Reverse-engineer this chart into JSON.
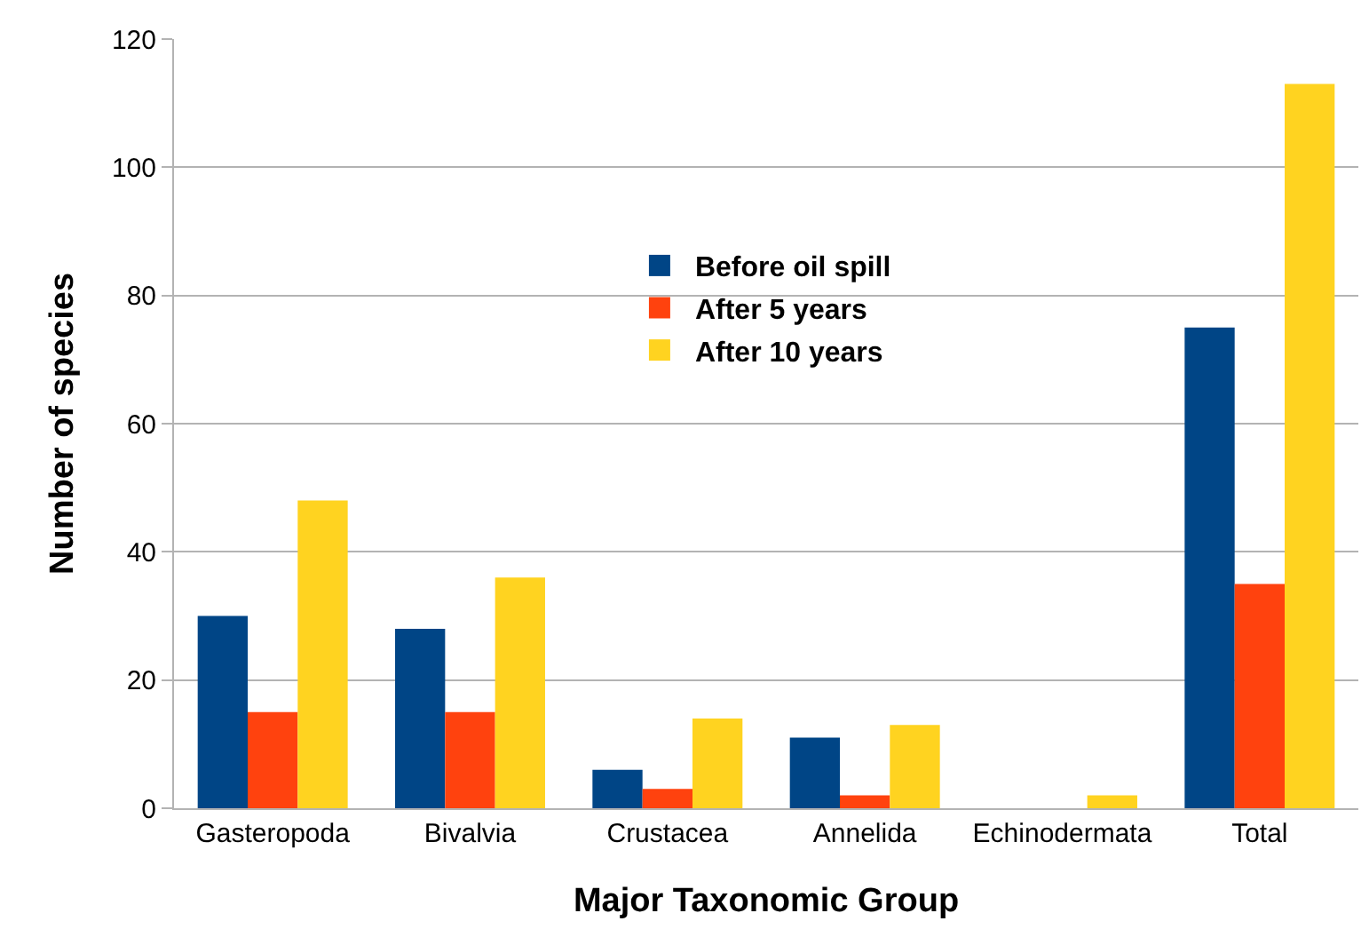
{
  "chart_data": {
    "type": "bar",
    "xlabel": "Major Taxonomic Group",
    "ylabel": "Number of species",
    "categories": [
      "Gasteropoda",
      "Bivalvia",
      "Crustacea",
      "Annelida",
      "Echinodermata",
      "Total"
    ],
    "series": [
      {
        "name": "Before oil spill",
        "color": "#004586",
        "values": [
          30,
          28,
          6,
          11,
          0,
          75
        ]
      },
      {
        "name": "After 5 years",
        "color": "#ff420e",
        "values": [
          15,
          15,
          3,
          2,
          0,
          35
        ]
      },
      {
        "name": "After 10 years",
        "color": "#ffd320",
        "values": [
          48,
          36,
          14,
          13,
          2,
          113
        ]
      }
    ],
    "ylim": [
      0,
      120
    ],
    "yticks": [
      0,
      20,
      40,
      60,
      80,
      100,
      120
    ],
    "grid": "y",
    "legend": "center"
  }
}
